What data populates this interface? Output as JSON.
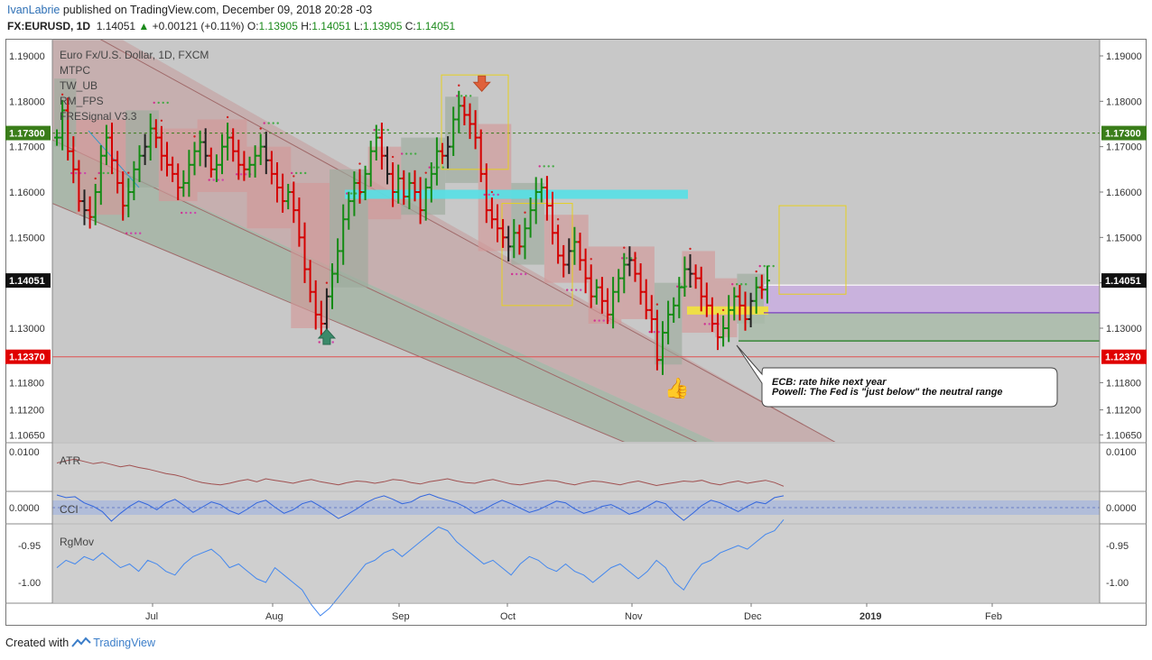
{
  "header": {
    "author": "IvanLabrie",
    "published_text": "published on TradingView.com, December 09, 2018 20:28 -03",
    "symbol": "FX:EURUSD, 1D",
    "last": "1.14051",
    "change": "+0.00121 (+0.11%)",
    "o_label": "O:",
    "o": "1.13905",
    "h_label": "H:",
    "h": "1.14051",
    "l_label": "L:",
    "l": "1.13905",
    "c_label": "C:",
    "c": "1.14051"
  },
  "legend": {
    "title": "Euro Fx/U.S. Dollar, 1D, FXCM",
    "indicators": [
      "MTPC",
      "TW_UB",
      "RM_FPS",
      "FRESignal V3.3"
    ]
  },
  "annotation": {
    "line1": "ECB: rate hike next year",
    "line2": "Powell: The Fed is \"just below\" the neutral range"
  },
  "footer": {
    "prefix": "Created with",
    "brand": "TradingView"
  },
  "colors": {
    "bull": "#148b14",
    "bear": "#d40000",
    "neutral": "#222222",
    "ch_red": "#c49a9a",
    "ch_green": "#9aae9a",
    "cyan": "#55e0e6",
    "purple": "#c9aee0",
    "yellow": "#f0e040",
    "atr_line": "#a05050",
    "cci_line": "#3366dd",
    "rgmov_line": "#4488ee",
    "price_label_green": "#3a7d1a",
    "price_label_red": "#e00000"
  },
  "chart_data": {
    "type": "candlestick",
    "price_axis": [
      "1.19000",
      "1.18000",
      "1.17000",
      "1.16000",
      "1.15000",
      "1.14000",
      "1.13000",
      "1.11800",
      "1.11200",
      "1.10650"
    ],
    "ylim": [
      1.1065,
      1.1935
    ],
    "last_label": "1.14051",
    "level_labels": {
      "green": "1.17300",
      "red": "1.12370"
    },
    "x_labels": [
      "Jul",
      "Aug",
      "Sep",
      "Oct",
      "Nov",
      "Dec",
      "2019",
      "Feb"
    ],
    "pane_labels": [
      "ATR",
      "CCI",
      "RgMov"
    ],
    "atr_axis": [
      "0.0100"
    ],
    "cci_axis": [
      "0.0000"
    ],
    "rgmov_axis": [
      "-0.95",
      "-1.00"
    ],
    "close_path": [
      1.172,
      1.178,
      1.169,
      1.165,
      1.158,
      1.156,
      1.1545,
      1.16,
      1.168,
      1.172,
      1.167,
      1.162,
      1.157,
      1.16,
      1.165,
      1.168,
      1.17,
      1.174,
      1.172,
      1.168,
      1.166,
      1.164,
      1.161,
      1.162,
      1.166,
      1.169,
      1.171,
      1.168,
      1.165,
      1.166,
      1.17,
      1.172,
      1.169,
      1.166,
      1.165,
      1.166,
      1.168,
      1.17,
      1.167,
      1.164,
      1.161,
      1.158,
      1.16,
      1.156,
      1.15,
      1.143,
      1.138,
      1.133,
      1.131,
      1.137,
      1.142,
      1.147,
      1.154,
      1.158,
      1.162,
      1.16,
      1.164,
      1.169,
      1.172,
      1.168,
      1.164,
      1.16,
      1.163,
      1.159,
      1.162,
      1.16,
      1.156,
      1.161,
      1.164,
      1.169,
      1.168,
      1.17,
      1.176,
      1.179,
      1.177,
      1.175,
      1.172,
      1.164,
      1.156,
      1.154,
      1.152,
      1.15,
      1.148,
      1.151,
      1.148,
      1.152,
      1.156,
      1.16,
      1.161,
      1.157,
      1.151,
      1.146,
      1.144,
      1.147,
      1.149,
      1.145,
      1.141,
      1.137,
      1.139,
      1.136,
      1.133,
      1.138,
      1.141,
      1.144,
      1.145,
      1.142,
      1.138,
      1.134,
      1.132,
      1.123,
      1.129,
      1.133,
      1.135,
      1.139,
      1.143,
      1.142,
      1.141,
      1.137,
      1.135,
      1.131,
      1.128,
      1.13,
      1.134,
      1.137,
      1.135,
      1.132,
      1.136,
      1.139,
      1.1385,
      1.1405
    ],
    "atr_path": [
      0.0085,
      0.0088,
      0.009,
      0.0087,
      0.0084,
      0.0086,
      0.0083,
      0.008,
      0.0082,
      0.0079,
      0.0077,
      0.0074,
      0.0071,
      0.0069,
      0.0066,
      0.0062,
      0.0059,
      0.0057,
      0.0056,
      0.0058,
      0.0061,
      0.0063,
      0.006,
      0.0064,
      0.0062,
      0.006,
      0.0058,
      0.0061,
      0.0063,
      0.006,
      0.0058,
      0.0056,
      0.0059,
      0.0061,
      0.006,
      0.0058,
      0.006,
      0.0063,
      0.0062,
      0.0059,
      0.0057,
      0.006,
      0.0062,
      0.0064,
      0.0061,
      0.0059,
      0.0058,
      0.0061,
      0.0063,
      0.006,
      0.0057,
      0.0056,
      0.0058,
      0.006,
      0.0062,
      0.0061,
      0.0058,
      0.0056,
      0.0059,
      0.0061,
      0.006,
      0.0058,
      0.0056,
      0.0059,
      0.0061,
      0.0058,
      0.0055,
      0.0057,
      0.0059,
      0.0061,
      0.006,
      0.0062,
      0.0058,
      0.0056,
      0.0059,
      0.0061,
      0.0058,
      0.006,
      0.0062,
      0.0059,
      0.0054
    ],
    "cci_path": [
      0.015,
      0.012,
      0.013,
      0.006,
      0.002,
      -0.004,
      -0.015,
      -0.006,
      0.002,
      0.008,
      0.004,
      -0.002,
      0.006,
      0.01,
      0.003,
      -0.005,
      0.001,
      0.007,
      0.004,
      -0.003,
      -0.007,
      -0.001,
      0.006,
      0.009,
      0.001,
      -0.006,
      -0.002,
      0.005,
      0.008,
      0.002,
      -0.005,
      -0.012,
      -0.007,
      -0.001,
      0.006,
      0.011,
      0.014,
      0.01,
      0.005,
      0.007,
      0.013,
      0.016,
      0.012,
      0.009,
      0.006,
      0.001,
      -0.006,
      -0.002,
      0.004,
      0.009,
      0.005,
      0.0,
      -0.005,
      -0.002,
      0.003,
      0.008,
      0.006,
      -0.001,
      -0.006,
      -0.003,
      0.002,
      0.004,
      -0.001,
      -0.007,
      -0.004,
      0.002,
      0.008,
      0.005,
      -0.006,
      -0.014,
      -0.006,
      0.003,
      0.009,
      0.006,
      0.001,
      -0.004,
      0.002,
      0.007,
      0.005,
      0.012,
      0.014
    ],
    "rgmov_path": [
      -0.98,
      -0.97,
      -0.975,
      -0.965,
      -0.97,
      -0.96,
      -0.97,
      -0.98,
      -0.975,
      -0.985,
      -0.97,
      -0.975,
      -0.985,
      -0.99,
      -0.975,
      -0.965,
      -0.96,
      -0.955,
      -0.965,
      -0.98,
      -0.975,
      -0.985,
      -0.995,
      -1.0,
      -0.98,
      -0.99,
      -1.0,
      -1.01,
      -1.03,
      -1.045,
      -1.035,
      -1.02,
      -1.005,
      -0.99,
      -0.975,
      -0.97,
      -0.96,
      -0.955,
      -0.965,
      -0.955,
      -0.945,
      -0.935,
      -0.925,
      -0.93,
      -0.945,
      -0.955,
      -0.965,
      -0.975,
      -0.97,
      -0.98,
      -0.99,
      -0.975,
      -0.965,
      -0.97,
      -0.98,
      -0.985,
      -0.975,
      -0.985,
      -0.99,
      -1.0,
      -0.99,
      -0.98,
      -0.975,
      -0.985,
      -0.995,
      -0.985,
      -0.97,
      -0.98,
      -1.0,
      -1.01,
      -0.99,
      -0.975,
      -0.97,
      -0.96,
      -0.955,
      -0.95,
      -0.955,
      -0.945,
      -0.935,
      -0.93,
      -0.915
    ]
  }
}
